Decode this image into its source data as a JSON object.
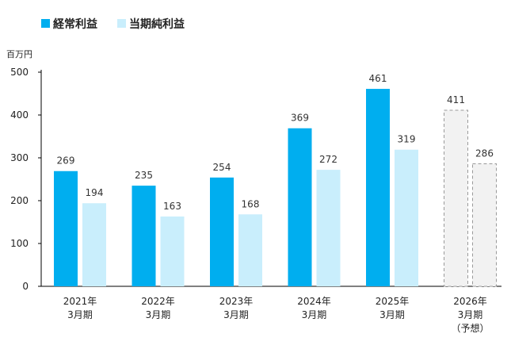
{
  "chart_data": {
    "type": "bar",
    "title": "",
    "unit": "百万円",
    "ylim": [
      0,
      500
    ],
    "yticks": [
      0,
      100,
      200,
      300,
      400,
      500
    ],
    "categories": [
      [
        "2021年",
        "3月期"
      ],
      [
        "2022年",
        "3月期"
      ],
      [
        "2023年",
        "3月期"
      ],
      [
        "2024年",
        "3月期"
      ],
      [
        "2025年",
        "3月期"
      ],
      [
        "2026年",
        "3月期",
        "（予想）"
      ]
    ],
    "forecast_index": 5,
    "series": [
      {
        "name": "経常利益",
        "color": "#00aeef",
        "values": [
          269,
          235,
          254,
          369,
          461,
          411
        ]
      },
      {
        "name": "当期純利益",
        "color": "#c9eefc",
        "values": [
          194,
          163,
          168,
          272,
          319,
          286
        ]
      }
    ],
    "forecast_fill": "#f2f2f2",
    "forecast_stroke": "#9a9a9a",
    "axis_color": "#000000"
  }
}
